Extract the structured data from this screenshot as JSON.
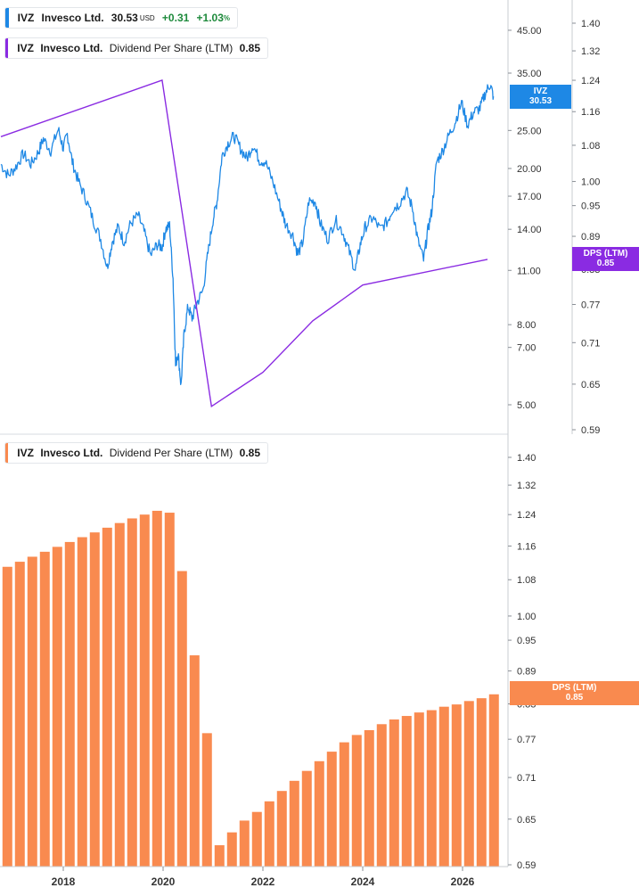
{
  "legend_price": {
    "ticker": "IVZ",
    "name": "Invesco Ltd.",
    "price": "30.53",
    "currency": "USD",
    "change": "+0.31",
    "change_pct_value": "+1.03",
    "change_pct_sign": "%",
    "color": "#1e88e5"
  },
  "legend_dps_top": {
    "ticker": "IVZ",
    "name": "Invesco Ltd.",
    "metric": "Dividend Per Share (LTM)",
    "value": "0.85",
    "color": "#8a2be2"
  },
  "legend_dps_bottom": {
    "ticker": "IVZ",
    "name": "Invesco Ltd.",
    "metric": "Dividend Per Share (LTM)",
    "value": "0.85",
    "color": "#f98a4f"
  },
  "tags": {
    "price_tag": {
      "line1": "IVZ",
      "line2": "30.53",
      "color": "#1e88e5"
    },
    "dps_tag_top": {
      "line1": "DPS (LTM)",
      "line2": "0.85",
      "color": "#8a2be2"
    },
    "dps_tag_bottom": {
      "line1": "DPS (LTM)",
      "line2": "0.85",
      "color": "#f98a4f"
    }
  },
  "chart_data": [
    {
      "type": "line",
      "scale": "log",
      "series": [
        {
          "name": "IVZ",
          "color": "#1e88e5",
          "points": [
            [
              2016.75,
              20.5
            ],
            [
              2016.9,
              19.2
            ],
            [
              2017.05,
              20.2
            ],
            [
              2017.2,
              21.8
            ],
            [
              2017.35,
              20.5
            ],
            [
              2017.5,
              22.0
            ],
            [
              2017.6,
              23.8
            ],
            [
              2017.75,
              22.2
            ],
            [
              2017.9,
              25.2
            ],
            [
              2018.0,
              22.5
            ],
            [
              2018.08,
              24.5
            ],
            [
              2018.18,
              20.8
            ],
            [
              2018.3,
              18.6
            ],
            [
              2018.45,
              16.8
            ],
            [
              2018.6,
              14.8
            ],
            [
              2018.75,
              13.2
            ],
            [
              2018.88,
              11.2
            ],
            [
              2018.98,
              13.0
            ],
            [
              2019.1,
              14.2
            ],
            [
              2019.22,
              13.0
            ],
            [
              2019.35,
              14.5
            ],
            [
              2019.5,
              15.2
            ],
            [
              2019.62,
              13.8
            ],
            [
              2019.75,
              12.0
            ],
            [
              2019.88,
              12.8
            ],
            [
              2019.98,
              12.6
            ],
            [
              2020.05,
              14.0
            ],
            [
              2020.13,
              14.3
            ],
            [
              2020.2,
              10.5
            ],
            [
              2020.25,
              6.3
            ],
            [
              2020.3,
              6.8
            ],
            [
              2020.36,
              5.6
            ],
            [
              2020.42,
              7.6
            ],
            [
              2020.5,
              8.9
            ],
            [
              2020.58,
              8.3
            ],
            [
              2020.68,
              9.1
            ],
            [
              2020.8,
              9.8
            ],
            [
              2020.9,
              12.2
            ],
            [
              2021.0,
              14.8
            ],
            [
              2021.08,
              16.5
            ],
            [
              2021.18,
              21.5
            ],
            [
              2021.3,
              23.2
            ],
            [
              2021.42,
              24.2
            ],
            [
              2021.55,
              22.5
            ],
            [
              2021.68,
              21.2
            ],
            [
              2021.8,
              23.0
            ],
            [
              2021.93,
              21.0
            ],
            [
              2022.05,
              20.8
            ],
            [
              2022.2,
              18.5
            ],
            [
              2022.35,
              16.0
            ],
            [
              2022.45,
              14.5
            ],
            [
              2022.6,
              13.5
            ],
            [
              2022.7,
              12.1
            ],
            [
              2022.8,
              13.0
            ],
            [
              2022.92,
              16.5
            ],
            [
              2023.05,
              16.5
            ],
            [
              2023.15,
              14.5
            ],
            [
              2023.3,
              13.2
            ],
            [
              2023.45,
              14.8
            ],
            [
              2023.6,
              13.8
            ],
            [
              2023.72,
              12.4
            ],
            [
              2023.85,
              11.0
            ],
            [
              2023.95,
              12.8
            ],
            [
              2024.05,
              14.2
            ],
            [
              2024.2,
              15.0
            ],
            [
              2024.35,
              14.0
            ],
            [
              2024.5,
              14.7
            ],
            [
              2024.6,
              15.8
            ],
            [
              2024.72,
              16.2
            ],
            [
              2024.88,
              17.5
            ],
            [
              2025.0,
              15.8
            ],
            [
              2025.1,
              13.2
            ],
            [
              2025.22,
              11.7
            ],
            [
              2025.3,
              13.8
            ],
            [
              2025.38,
              15.5
            ],
            [
              2025.48,
              20.8
            ],
            [
              2025.6,
              22.2
            ],
            [
              2025.72,
              24.2
            ],
            [
              2025.85,
              26.2
            ],
            [
              2025.98,
              29.5
            ],
            [
              2026.1,
              25.8
            ],
            [
              2026.22,
              27.8
            ],
            [
              2026.35,
              28.5
            ],
            [
              2026.45,
              31.0
            ],
            [
              2026.55,
              32.8
            ],
            [
              2026.62,
              30.53
            ]
          ]
        },
        {
          "name": "DPS (LTM)",
          "color": "#8a2be2",
          "points": [
            [
              2016.75,
              1.1
            ],
            [
              2019.98,
              1.24
            ],
            [
              2020.97,
              0.62
            ],
            [
              2022.0,
              0.6666
            ],
            [
              2023.0,
              0.7438
            ],
            [
              2024.0,
              0.8025
            ],
            [
              2026.5,
              0.8475
            ]
          ]
        }
      ],
      "y_left_ticks": [
        "45.00",
        "35.00",
        "25.00",
        "20.00",
        "17.00",
        "14.00",
        "11.00",
        "8.00",
        "7.00",
        "5.00"
      ],
      "y_right_ticks": [
        "1.40",
        "1.32",
        "1.24",
        "1.16",
        "1.08",
        "1.00",
        "0.95",
        "0.89",
        "0.83",
        "0.77",
        "0.71",
        "0.65",
        "0.59"
      ]
    },
    {
      "type": "bar",
      "series": [
        {
          "name": "DPS (LTM)",
          "color": "#f98a4f",
          "x": [
            2016.88,
            2017.13,
            2017.38,
            2017.63,
            2017.88,
            2018.13,
            2018.38,
            2018.63,
            2018.88,
            2019.13,
            2019.38,
            2019.63,
            2019.88,
            2020.13,
            2020.38,
            2020.63,
            2020.88,
            2021.13,
            2021.38,
            2021.63,
            2021.88,
            2022.13,
            2022.38,
            2022.63,
            2022.88,
            2023.13,
            2023.38,
            2023.63,
            2023.88,
            2024.13,
            2024.38,
            2024.63,
            2024.88,
            2025.13,
            2025.38,
            2025.63,
            2025.88,
            2026.13,
            2026.38,
            2026.63
          ],
          "values": [
            1.11,
            1.122,
            1.134,
            1.146,
            1.158,
            1.17,
            1.182,
            1.194,
            1.206,
            1.218,
            1.23,
            1.24,
            1.25,
            1.245,
            1.1,
            0.92,
            0.78,
            0.615,
            0.632,
            0.648,
            0.66,
            0.675,
            0.69,
            0.705,
            0.72,
            0.735,
            0.75,
            0.765,
            0.777,
            0.785,
            0.795,
            0.803,
            0.809,
            0.815,
            0.819,
            0.825,
            0.829,
            0.835,
            0.84,
            0.847
          ]
        }
      ],
      "x_ticks": [
        "2018",
        "2020",
        "2022",
        "2024",
        "2026"
      ],
      "y_right_ticks": [
        "1.40",
        "1.32",
        "1.24",
        "1.16",
        "1.08",
        "1.00",
        "0.95",
        "0.89",
        "0.83",
        "0.77",
        "0.71",
        "0.65",
        "0.59"
      ]
    }
  ]
}
